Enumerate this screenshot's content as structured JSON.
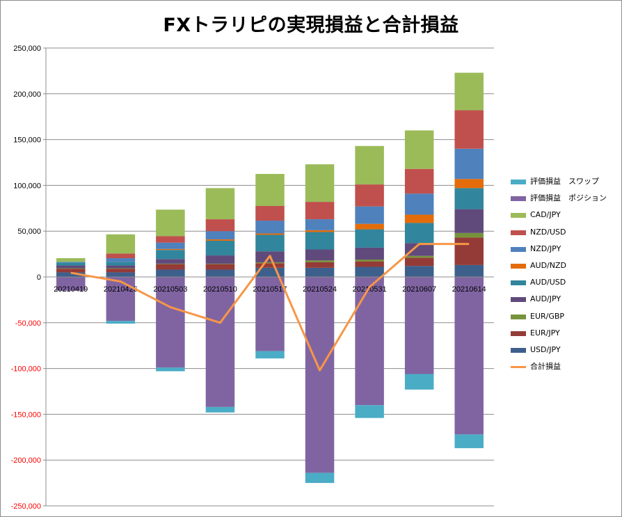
{
  "chart_data": {
    "type": "bar",
    "title": "FXトラリピの実現損益と合計損益",
    "categories": [
      "20210419",
      "20210426",
      "20210503",
      "20210510",
      "20210517",
      "20210524",
      "20210531",
      "20210607",
      "20210614"
    ],
    "ylim": [
      -250000,
      250000
    ],
    "yticks": [
      "250,000",
      "200,000",
      "150,000",
      "100,000",
      "50,000",
      "0",
      "-50,000",
      "-100,000",
      "-150,000",
      "-200,000",
      "-250,000"
    ],
    "ytick_values": [
      250000,
      200000,
      150000,
      100000,
      50000,
      0,
      -50000,
      -100000,
      -150000,
      -200000,
      -250000
    ],
    "grid": true,
    "legend_position": "right",
    "negative_tick_color": "#ff0000",
    "stacked": true,
    "series": [
      {
        "name": "USD/JPY",
        "color": "#3d5f8c",
        "values": [
          5000,
          5000,
          8000,
          8000,
          10000,
          10000,
          11000,
          12000,
          13000
        ]
      },
      {
        "name": "EUR/JPY",
        "color": "#943b37",
        "values": [
          4000,
          4000,
          6000,
          6000,
          5000,
          6000,
          6000,
          9000,
          30000
        ]
      },
      {
        "name": "EUR/GBP",
        "color": "#77933c",
        "values": [
          500,
          500,
          500,
          500,
          1000,
          2000,
          2000,
          2000,
          5000
        ]
      },
      {
        "name": "AUD/JPY",
        "color": "#604a7b",
        "values": [
          3000,
          3000,
          5000,
          9000,
          12000,
          12000,
          13000,
          14000,
          26000
        ]
      },
      {
        "name": "AUD/USD",
        "color": "#31859c",
        "values": [
          3000,
          4000,
          10000,
          16000,
          18000,
          19000,
          20000,
          22000,
          23000
        ]
      },
      {
        "name": "AUD/NZD",
        "color": "#e46c0a",
        "values": [
          0,
          0,
          1000,
          1500,
          1500,
          2000,
          6000,
          9000,
          10000
        ]
      },
      {
        "name": "NZD/JPY",
        "color": "#4f81bd",
        "values": [
          1000,
          4000,
          7000,
          9000,
          14000,
          12000,
          19000,
          23000,
          33000
        ]
      },
      {
        "name": "NZD/USD",
        "color": "#c0504d",
        "values": [
          0,
          5000,
          7000,
          13000,
          16000,
          19000,
          24000,
          27000,
          42000
        ]
      },
      {
        "name": "CAD/JPY",
        "color": "#9bbb59",
        "values": [
          4000,
          21000,
          29000,
          34000,
          35000,
          41000,
          42000,
          42000,
          41000
        ]
      },
      {
        "name": "評価損益　ポジション",
        "color": "#8064a2",
        "values": [
          -15000,
          -48000,
          -99000,
          -142000,
          -81000,
          -214000,
          -140000,
          -106000,
          -172000
        ]
      },
      {
        "name": "評価損益　スワップ",
        "color": "#4bacc6",
        "values": [
          0,
          -3000,
          -4000,
          -6000,
          -8000,
          -11000,
          -14000,
          -17000,
          -15000
        ]
      }
    ],
    "line": {
      "name": "合計損益",
      "color": "#f79646",
      "values": [
        4500,
        -5000,
        -33000,
        -50000,
        23000,
        -102000,
        -11000,
        36000,
        36000
      ]
    },
    "legend_order": [
      "評価損益　スワップ",
      "評価損益　ポジション",
      "CAD/JPY",
      "NZD/USD",
      "NZD/JPY",
      "AUD/NZD",
      "AUD/USD",
      "AUD/JPY",
      "EUR/GBP",
      "EUR/JPY",
      "USD/JPY",
      "合計損益"
    ]
  }
}
